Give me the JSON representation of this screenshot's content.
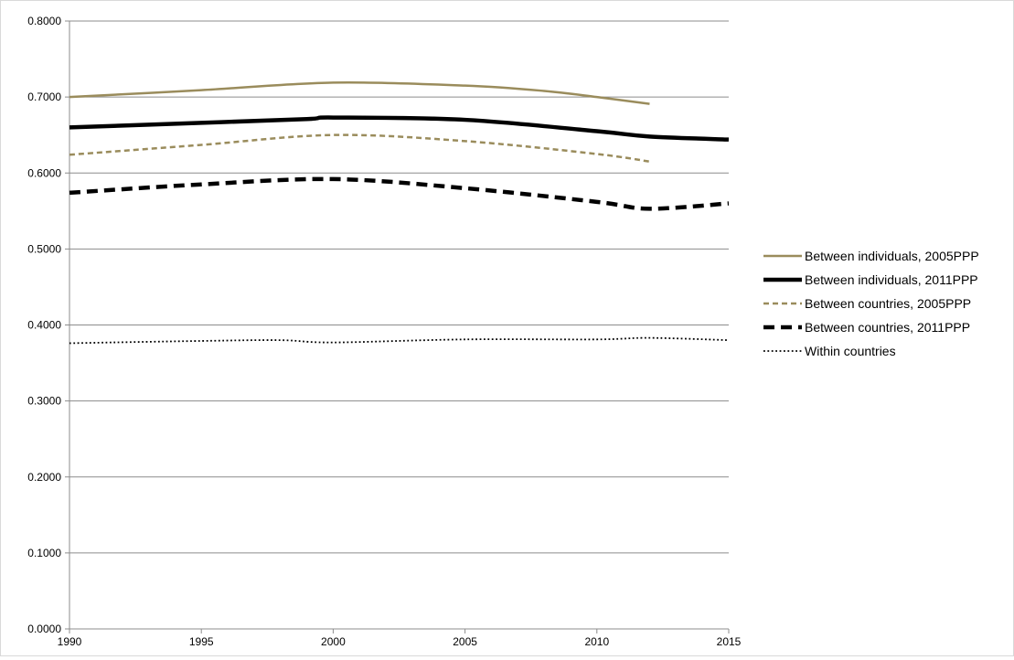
{
  "chart_data": {
    "type": "line",
    "title": "",
    "xlabel": "",
    "ylabel": "",
    "xlim": [
      1990,
      2015
    ],
    "ylim": [
      0,
      0.8
    ],
    "x_ticks": [
      1990,
      1995,
      2000,
      2005,
      2010,
      2015
    ],
    "x_tick_labels": [
      "1990",
      "1995",
      "2000",
      "2005",
      "2010",
      "2015"
    ],
    "y_ticks": [
      0,
      0.1,
      0.2,
      0.3,
      0.4,
      0.5,
      0.6,
      0.7,
      0.8
    ],
    "y_tick_labels": [
      "0.0000",
      "0.1000",
      "0.2000",
      "0.3000",
      "0.4000",
      "0.5000",
      "0.6000",
      "0.7000",
      "0.8000"
    ],
    "grid": "horizontal",
    "legend_position": "right",
    "series": [
      {
        "name": "Between individuals, 2005PPP",
        "color": "#9a8c5c",
        "style": "solid-thin",
        "x": [
          1990,
          1995,
          2000,
          2005,
          2008,
          2010,
          2012
        ],
        "y": [
          0.7,
          0.709,
          0.719,
          0.715,
          0.708,
          0.7,
          0.691
        ]
      },
      {
        "name": "Between individuals, 2011PPP",
        "color": "#000000",
        "style": "solid-thick",
        "x": [
          1990,
          1995,
          1999,
          2000,
          2005,
          2010,
          2012,
          2015
        ],
        "y": [
          0.66,
          0.666,
          0.671,
          0.673,
          0.67,
          0.655,
          0.648,
          0.644
        ]
      },
      {
        "name": "Between countries, 2005PPP",
        "color": "#9a8c5c",
        "style": "dashed-thin",
        "x": [
          1990,
          1995,
          2000,
          2005,
          2010,
          2012
        ],
        "y": [
          0.624,
          0.637,
          0.65,
          0.642,
          0.625,
          0.615
        ]
      },
      {
        "name": "Between countries, 2011PPP",
        "color": "#000000",
        "style": "dashed-thick",
        "x": [
          1990,
          1995,
          2000,
          2005,
          2010,
          2012,
          2015
        ],
        "y": [
          0.574,
          0.585,
          0.592,
          0.58,
          0.562,
          0.553,
          0.56
        ]
      },
      {
        "name": "Within countries",
        "color": "#000000",
        "style": "dotted",
        "x": [
          1990,
          1995,
          1998,
          2000,
          2005,
          2010,
          2012,
          2015
        ],
        "y": [
          0.376,
          0.379,
          0.38,
          0.377,
          0.381,
          0.381,
          0.383,
          0.38
        ]
      }
    ]
  }
}
